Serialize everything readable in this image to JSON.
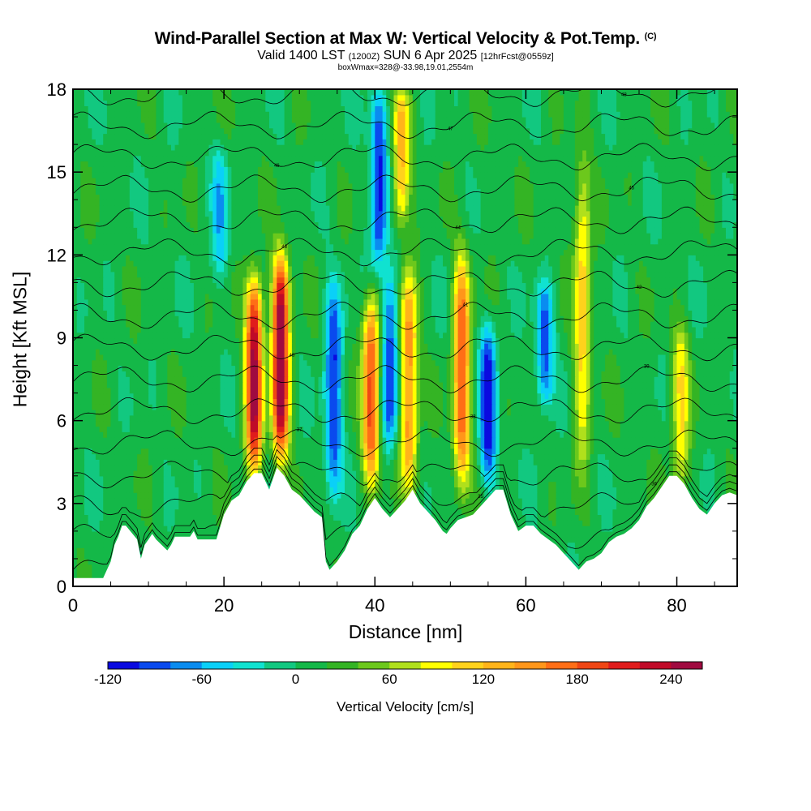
{
  "chart_data": {
    "type": "heatmap",
    "title": "Wind-Parallel Section at Max W: Vertical Velocity & Pot.Temp.",
    "copyright": "(C)",
    "subtitle": {
      "valid": "Valid 1400 LST",
      "zulu": "(1200Z)",
      "date": "SUN 6 Apr 2025",
      "forecast": "[12hrFcst@0559z]"
    },
    "info_line": "boxWmax=328@-33.98,19.01,2554m",
    "xlabel": "Distance [nm]",
    "ylabel": "Height [Kft MSL]",
    "xlim": [
      0,
      88
    ],
    "ylim": [
      0,
      18
    ],
    "x_ticks": [
      "0",
      "20",
      "40",
      "60",
      "80"
    ],
    "y_ticks": [
      "0",
      "3",
      "6",
      "9",
      "12",
      "15",
      "18"
    ],
    "colorbar": {
      "label": "Vertical Velocity [cm/s]",
      "levels": [
        -120,
        -100,
        -80,
        -60,
        -40,
        -20,
        0,
        20,
        40,
        60,
        80,
        100,
        120,
        140,
        160,
        180,
        200,
        220,
        240,
        260
      ],
      "tick_labels": [
        "-120",
        "-60",
        "0",
        "60",
        "120",
        "180",
        "240"
      ],
      "tick_values": [
        -120,
        -60,
        0,
        60,
        120,
        180,
        240
      ],
      "colors": [
        "#0a0ae0",
        "#0a4aee",
        "#0a8cf0",
        "#0ad0f8",
        "#10e2d0",
        "#12c880",
        "#14b848",
        "#34b424",
        "#6cc81c",
        "#b0e01c",
        "#ffff00",
        "#ffd21c",
        "#ffb41a",
        "#ff961a",
        "#ff6e16",
        "#f04614",
        "#e01c1c",
        "#c00a28",
        "#a00a40"
      ]
    },
    "updraft_cores": [
      {
        "x": 24.0,
        "y_bottom": 4.2,
        "y_top": 11.2,
        "w": 240
      },
      {
        "x": 27.5,
        "y_bottom": 4.6,
        "y_top": 12.0,
        "w": 260
      },
      {
        "x": 39.5,
        "y_bottom": 3.6,
        "y_top": 10.5,
        "w": 180
      },
      {
        "x": 44.5,
        "y_bottom": 3.5,
        "y_top": 11.5,
        "w": 150
      },
      {
        "x": 51.5,
        "y_bottom": 3.6,
        "y_top": 12.0,
        "w": 170
      },
      {
        "x": 67.5,
        "y_bottom": 4.5,
        "y_top": 15.5,
        "w": 100
      },
      {
        "x": 80.5,
        "y_bottom": 3.5,
        "y_top": 9.5,
        "w": 90
      },
      {
        "x": 43.5,
        "y_bottom": 13.0,
        "y_top": 18.0,
        "w": 120
      }
    ],
    "downdraft_cores": [
      {
        "x": 34.5,
        "y_bottom": 3.2,
        "y_top": 11.0,
        "w": -110
      },
      {
        "x": 42.0,
        "y_bottom": 5.0,
        "y_top": 11.5,
        "w": -110
      },
      {
        "x": 55.0,
        "y_bottom": 3.6,
        "y_top": 9.5,
        "w": -120
      },
      {
        "x": 62.5,
        "y_bottom": 6.5,
        "y_top": 11.0,
        "w": -100
      },
      {
        "x": 40.5,
        "y_bottom": 11.5,
        "y_top": 18.0,
        "w": -120
      },
      {
        "x": 19.5,
        "y_bottom": 11.0,
        "y_top": 16.0,
        "w": -60
      }
    ],
    "terrain": {
      "x": [
        0,
        2,
        4,
        5,
        5.5,
        6,
        6.5,
        7,
        8.5,
        9,
        9.5,
        10,
        10.5,
        11,
        12.5,
        13,
        13.5,
        14,
        15,
        15.5,
        16,
        16.5,
        19,
        20,
        21,
        22,
        23,
        24,
        25,
        26,
        26.5,
        27,
        28,
        29,
        30,
        31,
        32,
        33,
        33.5,
        34,
        35,
        36,
        37,
        38,
        39,
        40,
        41,
        42,
        43,
        44,
        45,
        46,
        47,
        48,
        49,
        49.5,
        50,
        51,
        52,
        53,
        54,
        55,
        56,
        57,
        58,
        59,
        60,
        61,
        62,
        63,
        64,
        65,
        66,
        67,
        68,
        69,
        70,
        71,
        72,
        73,
        74,
        75,
        76,
        77,
        78,
        79,
        80,
        81,
        82,
        83,
        84,
        85,
        86,
        87,
        88
      ],
      "y": [
        0.3,
        0.3,
        0.3,
        0.9,
        1.5,
        1.8,
        2.2,
        2.2,
        1.7,
        1.0,
        1.5,
        1.7,
        1.9,
        1.7,
        1.3,
        1.5,
        1.8,
        1.8,
        1.8,
        1.8,
        2.0,
        1.7,
        1.7,
        2.6,
        3.1,
        3.3,
        3.8,
        4.1,
        4.1,
        3.5,
        3.9,
        4.3,
        4.0,
        3.5,
        3.3,
        3.0,
        2.7,
        2.5,
        0.9,
        0.6,
        0.9,
        1.3,
        1.9,
        2.2,
        2.8,
        3.2,
        2.8,
        2.5,
        2.8,
        3.1,
        3.5,
        3.0,
        2.7,
        2.4,
        2.0,
        1.9,
        2.1,
        2.4,
        2.5,
        2.6,
        2.9,
        3.2,
        3.5,
        3.5,
        2.6,
        2.0,
        2.2,
        2.2,
        1.9,
        1.7,
        1.5,
        1.2,
        0.9,
        0.6,
        0.9,
        1.0,
        1.2,
        1.6,
        1.8,
        1.9,
        2.1,
        2.4,
        2.9,
        3.2,
        3.6,
        4.0,
        4.0,
        3.7,
        3.2,
        2.8,
        2.6,
        3.0,
        3.3,
        3.4,
        3.3
      ]
    },
    "theta_contour_labels": [
      "33",
      "34",
      "35",
      "36",
      "37",
      "38",
      "39",
      "40",
      "41",
      "42",
      "43",
      "44",
      "45",
      "46",
      "47",
      "48"
    ]
  }
}
